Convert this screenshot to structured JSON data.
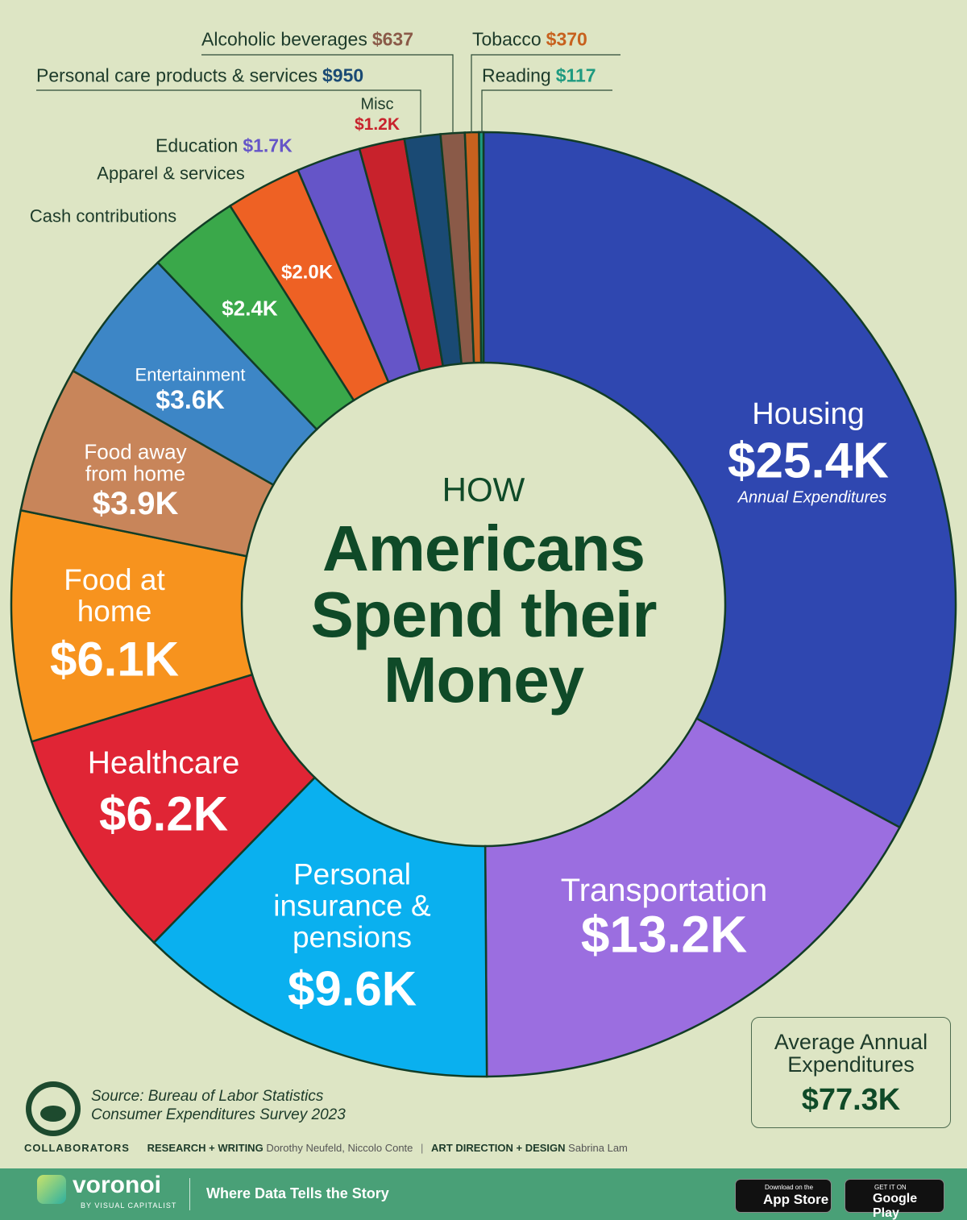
{
  "chart_data": {
    "type": "donut",
    "title_top": "HOW",
    "title": "Americans Spend their Money",
    "annotation": "Annual Expenditures",
    "categories": [
      "Housing",
      "Transportation",
      "Personal insurance & pensions",
      "Healthcare",
      "Food at home",
      "Food away from home",
      "Entertainment",
      "Cash contributions",
      "Apparel & services",
      "Education",
      "Misc",
      "Personal care products & services",
      "Alcoholic beverages",
      "Tobacco",
      "Reading"
    ],
    "values": [
      25400,
      13200,
      9600,
      6200,
      6100,
      3900,
      3600,
      2400,
      2000,
      1700,
      1200,
      950,
      637,
      370,
      117
    ],
    "value_labels": [
      "$25.4K",
      "$13.2K",
      "$9.6K",
      "$6.2K",
      "$6.1K",
      "$3.9K",
      "$3.6K",
      "$2.4K",
      "$2.0K",
      "$1.7K",
      "$1.2K",
      "$950",
      "$637",
      "$370",
      "$117"
    ],
    "colors": [
      "#2f47b0",
      "#9b6ee0",
      "#0ab0ef",
      "#e02535",
      "#f7931e",
      "#c8855a",
      "#3d86c6",
      "#3aa84a",
      "#ee6124",
      "#6555c8",
      "#c8222c",
      "#1a4a74",
      "#8a5a48",
      "#c7611e",
      "#1e9a80"
    ],
    "total": {
      "label": "Average Annual Expenditures",
      "value": 77300,
      "value_label": "$77.3K"
    }
  },
  "source": "Source: Bureau of Labor Statistics Consumer Expenditures Survey 2023",
  "credits": {
    "heading": "COLLABORATORS",
    "roles": [
      {
        "role": "RESEARCH + WRITING",
        "names": "Dorothy Neufeld, Niccolo Conte"
      },
      {
        "role": "ART DIRECTION + DESIGN",
        "names": "Sabrina Lam"
      }
    ]
  },
  "footer": {
    "brand": "voronoi",
    "brand_sub": "BY VISUAL CAPITALIST",
    "tagline": "Where Data Tells the Story",
    "buttons": [
      {
        "small": "Download on the",
        "big": "App Store"
      },
      {
        "small": "GET IT ON",
        "big": "Google Play"
      }
    ]
  }
}
